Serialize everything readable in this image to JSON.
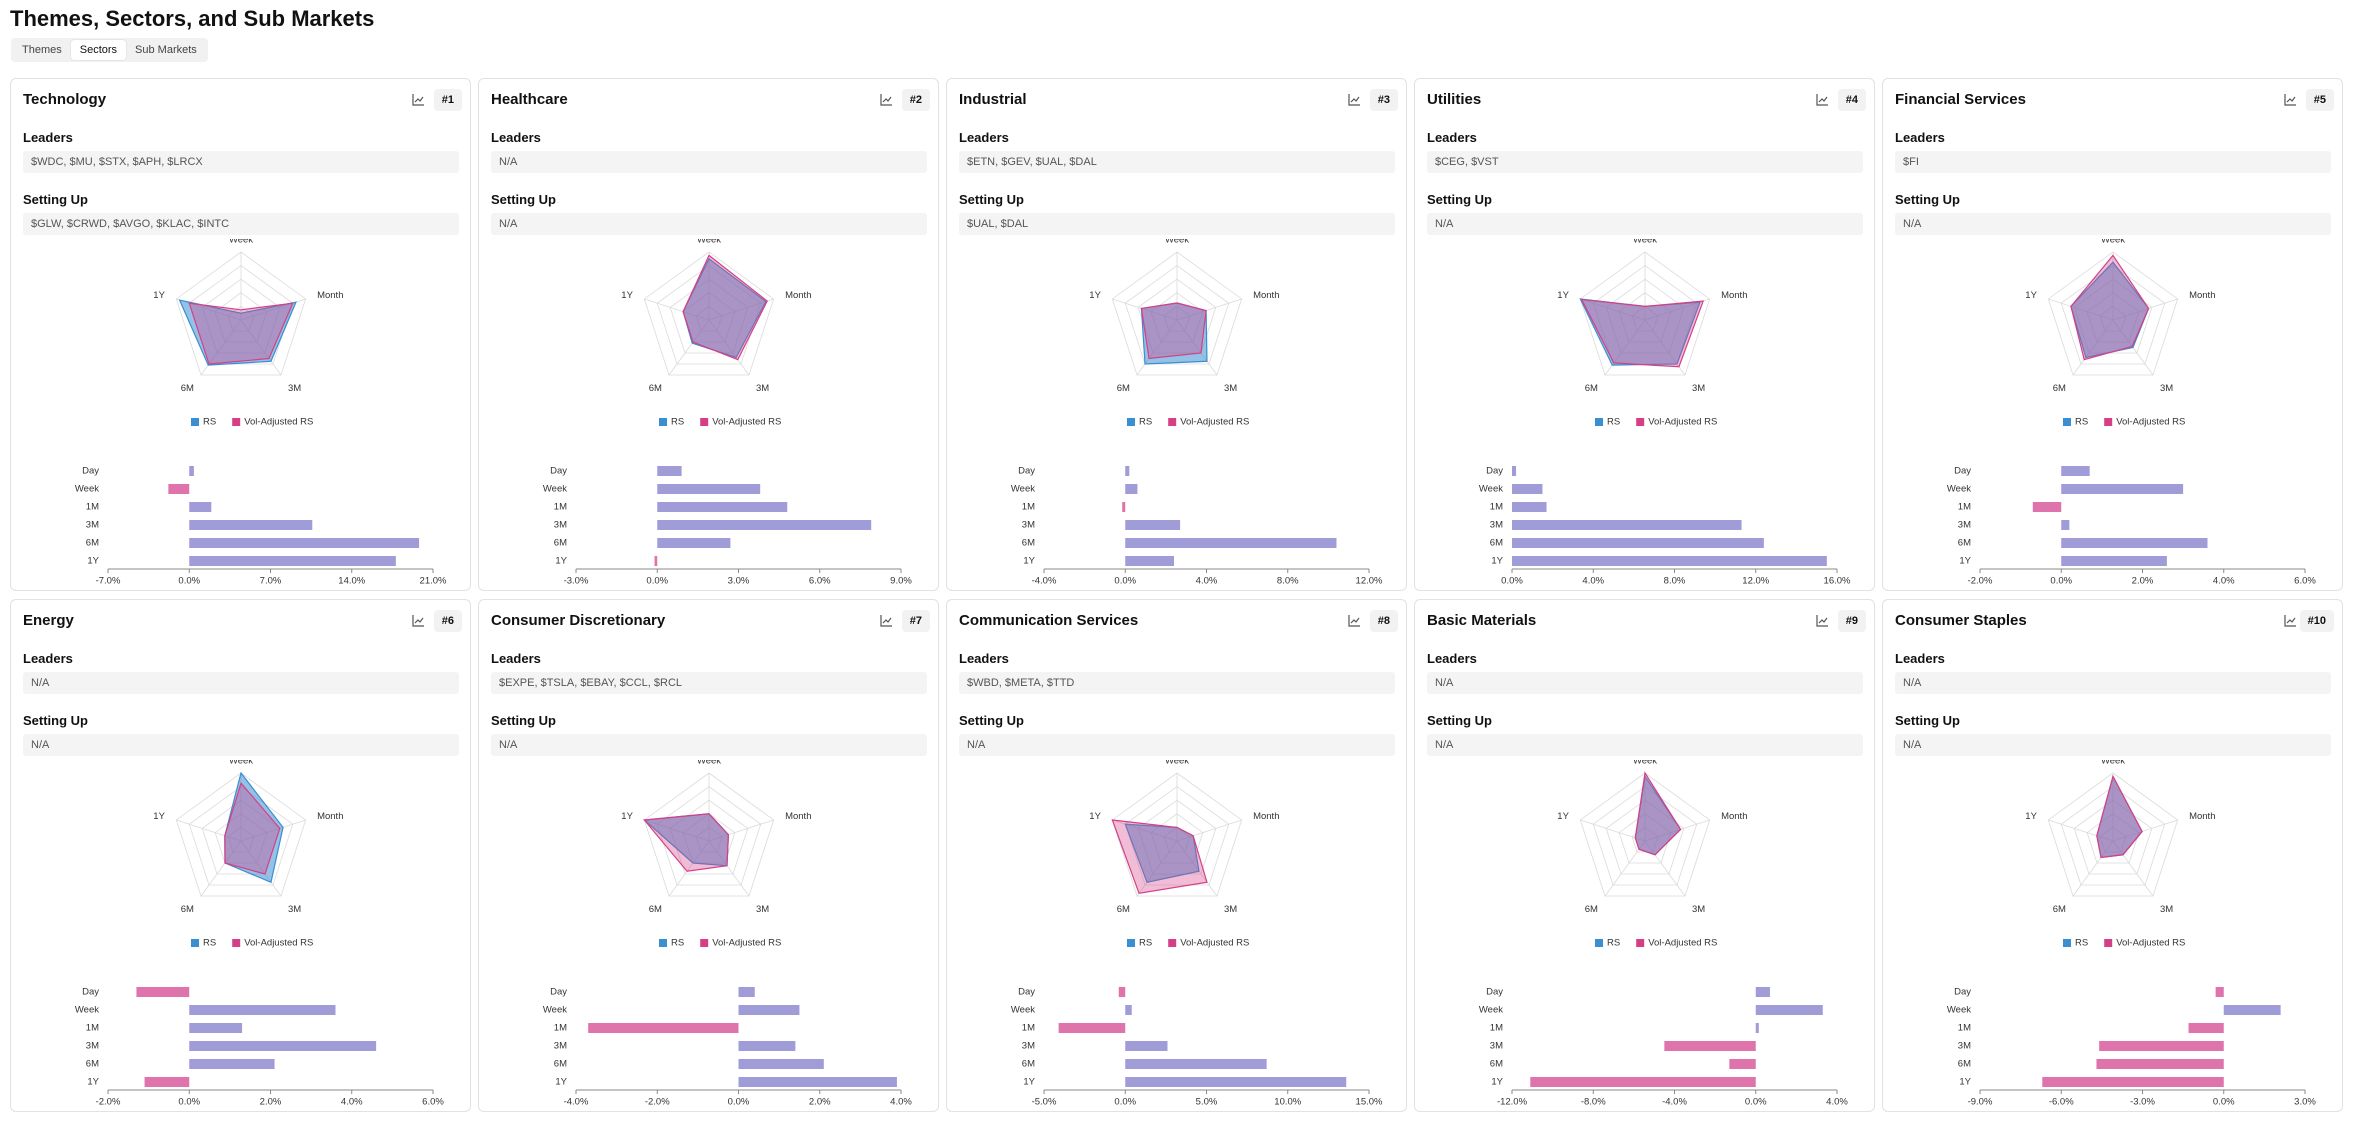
{
  "header": {
    "title": "Themes, Sectors, and Sub Markets"
  },
  "tabs": [
    {
      "label": "Themes",
      "active": false
    },
    {
      "label": "Sectors",
      "active": true
    },
    {
      "label": "Sub Markets",
      "active": false
    }
  ],
  "labels": {
    "leaders": "Leaders",
    "setting_up": "Setting Up"
  },
  "radar": {
    "axes": [
      "Week",
      "Month",
      "3M",
      "6M",
      "1Y"
    ],
    "rlim": [
      0,
      100
    ],
    "series": [
      {
        "name": "RS",
        "color": "#3a8fd1"
      },
      {
        "name": "Vol-Adjusted RS",
        "color": "#d63f86"
      }
    ]
  },
  "bar_categories": [
    "Day",
    "Week",
    "1M",
    "3M",
    "6M",
    "1Y"
  ],
  "bar_colors": {
    "positive": "#a09cd8",
    "negative": "#df74ad"
  },
  "cards": [
    {
      "name": "Technology",
      "rank": "#1",
      "leaders": "$WDC, $MU, $STX, $APH, $LRCX",
      "setting_up": "$GLW, $CRWD, $AVGO, $KLAC, $INTC",
      "radar_values": [
        [
          10,
          85,
          75,
          82,
          95
        ],
        [
          15,
          80,
          70,
          80,
          80
        ]
      ],
      "bars": {
        "values": [
          0.4,
          -1.8,
          1.9,
          10.6,
          19.8,
          17.8
        ],
        "xlim": [
          -7,
          21
        ],
        "xticks": [
          {
            "value": -7,
            "label": "-7.0%"
          },
          {
            "value": 0,
            "label": "0.0%"
          },
          {
            "value": 7,
            "label": "7.0%"
          },
          {
            "value": 14,
            "label": "14.0%"
          },
          {
            "value": 21,
            "label": "21.0%"
          }
        ]
      }
    },
    {
      "name": "Healthcare",
      "rank": "#2",
      "leaders": "N/A",
      "setting_up": "N/A",
      "radar_values": [
        [
          90,
          88,
          68,
          42,
          40
        ],
        [
          95,
          90,
          72,
          40,
          40
        ]
      ],
      "bars": {
        "values": [
          0.9,
          3.8,
          4.8,
          7.9,
          2.7,
          -0.1
        ],
        "xlim": [
          -3,
          9
        ],
        "xticks": [
          {
            "value": -3,
            "label": "-3.0%"
          },
          {
            "value": 0,
            "label": "0.0%"
          },
          {
            "value": 3,
            "label": "3.0%"
          },
          {
            "value": 6,
            "label": "6.0%"
          },
          {
            "value": 9,
            "label": "9.0%"
          }
        ]
      }
    },
    {
      "name": "Industrial",
      "rank": "#3",
      "leaders": "$ETN, $GEV, $UAL, $DAL",
      "setting_up": "$UAL, $DAL",
      "radar_values": [
        [
          25,
          45,
          75,
          80,
          55
        ],
        [
          25,
          45,
          60,
          70,
          55
        ]
      ],
      "bars": {
        "values": [
          0.2,
          0.6,
          -0.15,
          2.7,
          10.4,
          2.4
        ],
        "xlim": [
          -4,
          12
        ],
        "xticks": [
          {
            "value": -4,
            "label": "-4.0%"
          },
          {
            "value": 0,
            "label": "0.0%"
          },
          {
            "value": 4,
            "label": "4.0%"
          },
          {
            "value": 8,
            "label": "8.0%"
          },
          {
            "value": 12,
            "label": "12.0%"
          }
        ]
      }
    },
    {
      "name": "Utilities",
      "rank": "#4",
      "leaders": "$CEG, $VST",
      "setting_up": "N/A",
      "radar_values": [
        [
          20,
          85,
          80,
          82,
          100
        ],
        [
          20,
          90,
          85,
          78,
          98
        ]
      ],
      "bars": {
        "values": [
          0.2,
          1.5,
          1.7,
          11.3,
          12.4,
          15.5
        ],
        "xlim": [
          0,
          16
        ],
        "xticks": [
          {
            "value": 0,
            "label": "0.0%"
          },
          {
            "value": 4,
            "label": "4.0%"
          },
          {
            "value": 8,
            "label": "8.0%"
          },
          {
            "value": 12,
            "label": "12.0%"
          },
          {
            "value": 16,
            "label": "16.0%"
          }
        ]
      }
    },
    {
      "name": "Financial Services",
      "rank": "#5",
      "leaders": "$FI",
      "setting_up": "N/A",
      "radar_values": [
        [
          85,
          55,
          50,
          68,
          65
        ],
        [
          95,
          55,
          48,
          72,
          65
        ]
      ],
      "bars": {
        "values": [
          0.7,
          3.0,
          -0.7,
          0.2,
          3.6,
          2.6
        ],
        "xlim": [
          -2,
          6
        ],
        "xticks": [
          {
            "value": -2,
            "label": "-2.0%"
          },
          {
            "value": 0,
            "label": "0.0%"
          },
          {
            "value": 2,
            "label": "2.0%"
          },
          {
            "value": 4,
            "label": "4.0%"
          },
          {
            "value": 6,
            "label": "6.0%"
          }
        ]
      }
    },
    {
      "name": "Energy",
      "rank": "#6",
      "leaders": "N/A",
      "setting_up": "N/A",
      "radar_values": [
        [
          100,
          65,
          75,
          40,
          25
        ],
        [
          85,
          60,
          60,
          40,
          25
        ]
      ],
      "bars": {
        "values": [
          -1.3,
          3.6,
          1.3,
          4.6,
          2.1,
          -1.1
        ],
        "xlim": [
          -2,
          6
        ],
        "xticks": [
          {
            "value": -2,
            "label": "-2.0%"
          },
          {
            "value": 0,
            "label": "0.0%"
          },
          {
            "value": 2,
            "label": "2.0%"
          },
          {
            "value": 4,
            "label": "4.0%"
          },
          {
            "value": 6,
            "label": "6.0%"
          }
        ]
      }
    },
    {
      "name": "Consumer Discretionary",
      "rank": "#7",
      "leaders": "$EXPE, $TSLA, $EBAY, $CCL, $RCL",
      "setting_up": "N/A",
      "radar_values": [
        [
          40,
          30,
          45,
          40,
          100
        ],
        [
          40,
          30,
          45,
          55,
          100
        ]
      ],
      "bars": {
        "values": [
          0.4,
          1.5,
          -3.7,
          1.4,
          2.1,
          3.9
        ],
        "xlim": [
          -4,
          4
        ],
        "xticks": [
          {
            "value": -4,
            "label": "-4.0%"
          },
          {
            "value": -2,
            "label": "-2.0%"
          },
          {
            "value": 0,
            "label": "0.0%"
          },
          {
            "value": 2,
            "label": "2.0%"
          },
          {
            "value": 4,
            "label": "4.0%"
          }
        ]
      }
    },
    {
      "name": "Communication Services",
      "rank": "#8",
      "leaders": "$WBD, $META, $TTD",
      "setting_up": "N/A",
      "radar_values": [
        [
          20,
          25,
          55,
          75,
          80
        ],
        [
          20,
          25,
          75,
          95,
          100
        ]
      ],
      "bars": {
        "values": [
          -0.4,
          0.4,
          -4.1,
          2.6,
          8.7,
          13.6
        ],
        "xlim": [
          -5,
          15
        ],
        "xticks": [
          {
            "value": -5,
            "label": "-5.0%"
          },
          {
            "value": 0,
            "label": "0.0%"
          },
          {
            "value": 5,
            "label": "5.0%"
          },
          {
            "value": 10,
            "label": "10.0%"
          },
          {
            "value": 15,
            "label": "15.0%"
          }
        ]
      }
    },
    {
      "name": "Basic Materials",
      "rank": "#9",
      "leaders": "N/A",
      "setting_up": "N/A",
      "radar_values": [
        [
          95,
          55,
          25,
          15,
          15
        ],
        [
          100,
          55,
          25,
          15,
          15
        ]
      ],
      "bars": {
        "values": [
          0.7,
          3.3,
          0.15,
          -4.5,
          -1.3,
          -11.1
        ],
        "xlim": [
          -12,
          4
        ],
        "xticks": [
          {
            "value": -12,
            "label": "-12.0%"
          },
          {
            "value": -8,
            "label": "-8.0%"
          },
          {
            "value": -4,
            "label": "-4.0%"
          },
          {
            "value": 0,
            "label": "0.0%"
          },
          {
            "value": 4,
            "label": "4.0%"
          }
        ]
      }
    },
    {
      "name": "Consumer Staples",
      "rank": "#10",
      "leaders": "N/A",
      "setting_up": "N/A",
      "radar_values": [
        [
          95,
          45,
          25,
          30,
          25
        ],
        [
          95,
          45,
          25,
          30,
          25
        ]
      ],
      "bars": {
        "values": [
          -0.3,
          2.1,
          -1.3,
          -4.6,
          -4.7,
          -6.7
        ],
        "xlim": [
          -9,
          3
        ],
        "xticks": [
          {
            "value": -9,
            "label": "-9.0%"
          },
          {
            "value": -6,
            "label": "-6.0%"
          },
          {
            "value": -3,
            "label": "-3.0%"
          },
          {
            "value": 0,
            "label": "0.0%"
          },
          {
            "value": 3,
            "label": "3.0%"
          }
        ]
      }
    }
  ]
}
